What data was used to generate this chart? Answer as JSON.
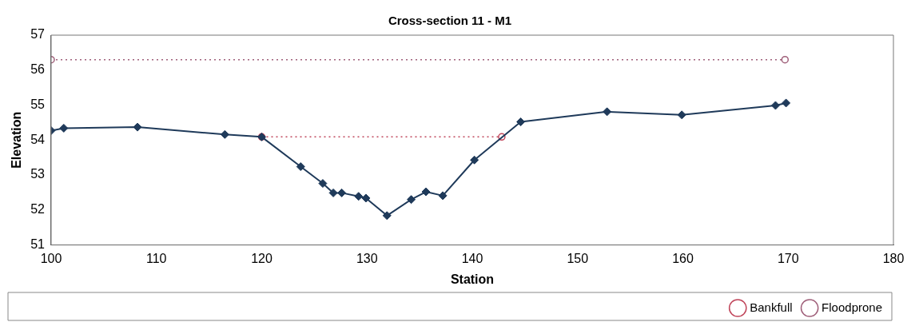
{
  "chart_data": {
    "type": "line",
    "title": "Cross-section 11 - M1",
    "xlabel": "Station",
    "ylabel": "Elevation",
    "xlim": [
      100,
      180
    ],
    "xticks": [
      100,
      110,
      120,
      130,
      140,
      150,
      160,
      170,
      180
    ],
    "ylim": [
      51,
      57
    ],
    "yticks": [
      51,
      52,
      53,
      54,
      55,
      56,
      57
    ],
    "grid": false,
    "legend": "bottom right",
    "series": [
      {
        "color": "#1f3a5a",
        "marker": "diamond",
        "line_style": "solid",
        "x": [
          100.0,
          101.2,
          108.2,
          116.5,
          120.0,
          123.7,
          125.8,
          126.8,
          127.6,
          129.2,
          129.9,
          131.9,
          134.2,
          135.6,
          137.2,
          140.2,
          144.6,
          152.8,
          159.9,
          168.8,
          169.8
        ],
        "values": [
          54.27,
          54.34,
          54.37,
          54.16,
          54.09,
          53.24,
          52.76,
          52.49,
          52.49,
          52.39,
          52.34,
          51.84,
          52.3,
          52.52,
          52.41,
          53.43,
          54.52,
          54.81,
          54.72,
          54.99,
          55.06
        ]
      },
      {
        "name": "Bankfull",
        "color": "#c0455a",
        "marker": "circle",
        "line_style": "dotted",
        "x": [
          120.0,
          142.8
        ],
        "values": [
          54.09,
          54.09
        ]
      },
      {
        "name": "Floodprone",
        "color": "#a0607a",
        "marker": "circle",
        "line_style": "dotted",
        "x": [
          100.0,
          169.7
        ],
        "values": [
          56.3,
          56.3
        ]
      }
    ]
  }
}
